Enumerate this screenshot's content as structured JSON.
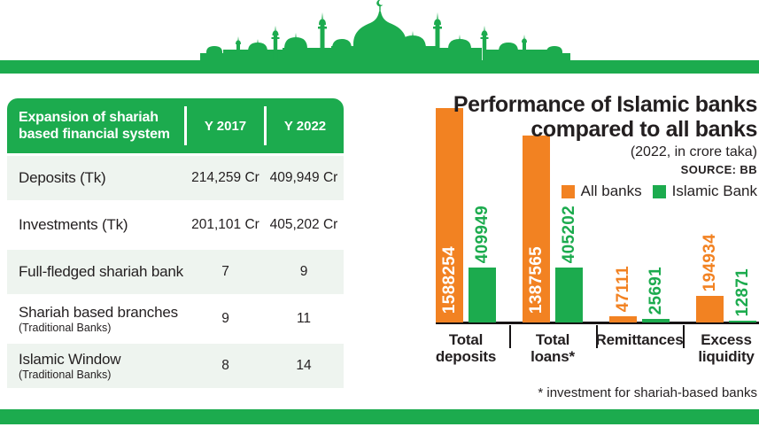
{
  "colors": {
    "green": "#1cab4e",
    "orange": "#f28222",
    "row_tint": "#eef4ef",
    "text_dark": "#231f20"
  },
  "banner": {
    "icon": "mosque-skyline"
  },
  "table": {
    "header": {
      "title_line1": "Expansion of shariah",
      "title_line2": "based financial system",
      "col1": "Y 2017",
      "col2": "Y 2022"
    },
    "rows": [
      {
        "label": "Deposits (Tk)",
        "sublabel": "",
        "y2017": "214,259 Cr",
        "y2022": "409,949 Cr"
      },
      {
        "label": "Investments (Tk)",
        "sublabel": "",
        "y2017": "201,101 Cr",
        "y2022": "405,202 Cr"
      },
      {
        "label": "Full-fledged shariah bank",
        "sublabel": "",
        "y2017": "7",
        "y2022": "9"
      },
      {
        "label": "Shariah based branches",
        "sublabel": "(Traditional Banks)",
        "y2017": "9",
        "y2022": "11"
      },
      {
        "label": "Islamic Window",
        "sublabel": "(Traditional Banks)",
        "y2017": "8",
        "y2022": "14"
      }
    ]
  },
  "chart": {
    "title_line1": "Performance of Islamic banks",
    "title_line2": "compared to all banks",
    "subtitle": "(2022, in crore taka)",
    "source": "SOURCE: BB",
    "footnote": "* investment for shariah-based banks"
  },
  "chart_data": {
    "type": "bar",
    "title": "Performance of Islamic banks compared to all banks",
    "subtitle": "(2022, in crore taka)",
    "source": "SOURCE: BB",
    "unit": "crore taka (2022)",
    "categories": [
      "Total deposits",
      "Total loans*",
      "Remittances",
      "Excess liquidity"
    ],
    "category_label_lines": [
      [
        "Total",
        "deposits"
      ],
      [
        "Total",
        "loans*"
      ],
      [
        "Remittances"
      ],
      [
        "Excess",
        "liquidity"
      ]
    ],
    "series": [
      {
        "name": "All banks",
        "color": "#f28222",
        "values": [
          1588254,
          1387565,
          47111,
          194934
        ]
      },
      {
        "name": "Islamic Bank",
        "color": "#1cab4e",
        "values": [
          409949,
          405202,
          25691,
          12871
        ]
      }
    ],
    "ylim": [
      0,
      1600000
    ],
    "grid": false,
    "legend_position": "top-right",
    "value_labels": "rotated-90",
    "footnote": "* investment for shariah-based banks"
  }
}
